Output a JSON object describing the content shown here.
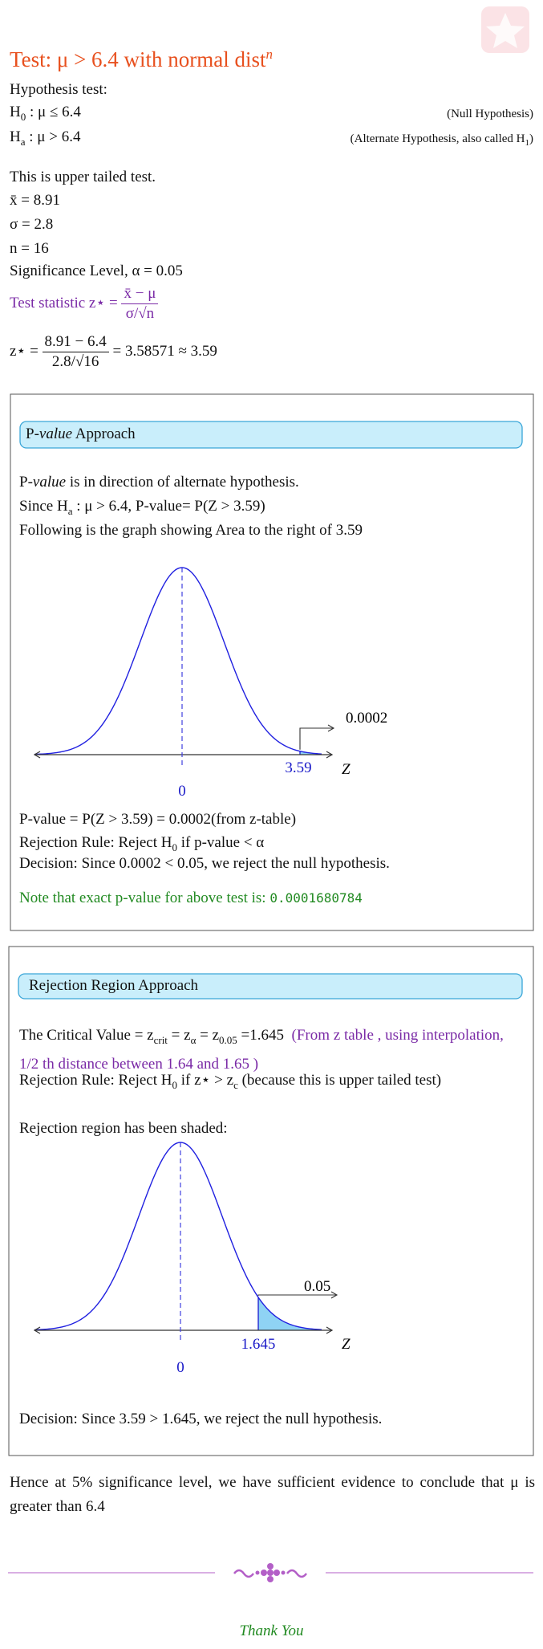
{
  "header": {
    "title": "Test: μ > 6.4 with normal dist",
    "title_sup": "n"
  },
  "hypothesis": {
    "label": "Hypothesis test:",
    "h0": [
      "H",
      "0",
      " : μ ≤ 6.4"
    ],
    "h0_note": "(Null Hypothesis)",
    "ha": [
      "H",
      "a",
      " : μ > 6.4"
    ],
    "ha_note": [
      "(Alternate Hypothesis, also called H",
      "1",
      ")"
    ]
  },
  "given": [
    "This is upper tailed test.",
    "x̄ = 8.91",
    "σ = 2.8",
    "n = 16",
    "Significance Level, α = 0.05"
  ],
  "test_statistic": {
    "label": "Test statistic z⋆ =",
    "numerator": "x̄ − μ",
    "denominator": "σ/√n"
  },
  "computation": {
    "lhs": "z⋆ =",
    "numerator": "8.91 − 6.4",
    "denominator": "2.8/√16",
    "result": "= 3.58571 ≈ 3.59"
  },
  "pvalue_approach": {
    "heading": [
      "P-",
      "value",
      " Approach"
    ],
    "lines": [
      [
        "P-",
        "value",
        " is in direction of alternate hypothesis."
      ],
      [
        "Since H",
        "a",
        " : μ > 6.4, P-value= P(Z > 3.59)"
      ],
      [
        "Following is the graph showing Area to the right of 3.59"
      ]
    ],
    "graph": {
      "area": "0.0002",
      "z": "3.59",
      "center": "0",
      "axis": "Z"
    },
    "result": "P-value = P(Z > 3.59) = 0.0002(from z-table)",
    "rule": [
      "Rejection Rule: Reject H",
      "0",
      " if p-value < α"
    ],
    "decision": "Decision: Since 0.0002 < 0.05, we reject the null hypothesis.",
    "note": "Note that exact p-value for above test is:",
    "exact": "0.0001680784"
  },
  "rejection_region_approach": {
    "heading": "Rejection Region Approach",
    "critical": [
      "The Critical Value = z",
      "crit",
      " = z",
      "α",
      " = z",
      "0.05",
      " =1.645"
    ],
    "critical_note": "(From z table , using interpolation, 1/2 th distance between 1.64 and 1.65 )",
    "rule": [
      "Rejection Rule: Reject H",
      "0",
      " if z⋆ > z",
      "c",
      " (because this is upper tailed test)"
    ],
    "shaded": "Rejection region has been shaded:",
    "graph": {
      "area": "0.05",
      "z": "1.645",
      "center": "0",
      "axis": "Z"
    },
    "decision": "Decision: Since 3.59 > 1.645, we reject the null hypothesis."
  },
  "conclusion": "Hence at 5% significance level, we have sufficient evidence to conclude that μ is greater than 6.4",
  "footer": "Thank You"
}
